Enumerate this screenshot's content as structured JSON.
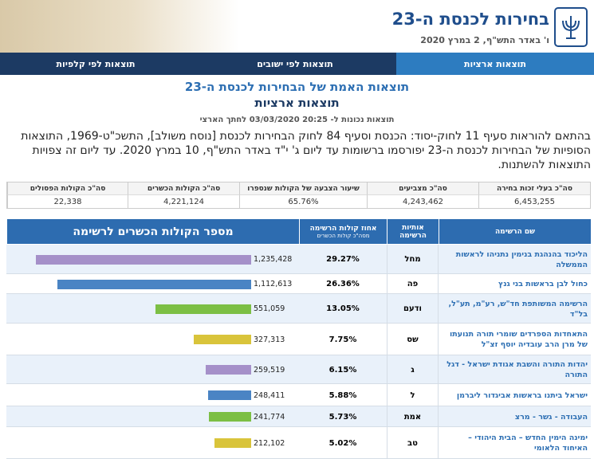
{
  "header": {
    "title": "בחירות לכנסת ה-23",
    "date": "ו' באדר התש\"ף, 2 במרץ 2020"
  },
  "nav": [
    "תוצאות ארציות",
    "תוצאות לפי ישובים",
    "תוצאות לפי קלפיות"
  ],
  "main": {
    "title": "תוצאות האמת של הבחירות לכנסת ה-23",
    "subtitle": "תוצאות ארציות",
    "timestamp": "תוצאות נכונות ל- 20:25 03/03/2020 לחתך הארצי",
    "paragraph": "בהתאם להוראות סעיף 11 לחוק-יסוד: הכנסת וסעיף 84 לחוק הבחירות לכנסת [נוסח משולב], התשכ\"ט-1969, התוצאות הסופיות של הבחירות לכנסת ה-23 יפורסמו ברשומות עד ליום ג' י\"ד באדר התש\"ף, 10 במרץ 2020. עד ליום זה צפויות התוצאות להשתנות."
  },
  "summary": {
    "headers": [
      "סה\"כ בעלי זכות בחירה",
      "סה\"כ מצביעים",
      "שיעור הצבעה של הקולות שנספרו",
      "סה\"כ הקולות הכשרים",
      "סה\"כ הקולות הפסולים"
    ],
    "values": [
      "6,453,255",
      "4,243,462",
      "65.76%",
      "4,221,124",
      "22,338"
    ]
  },
  "results": {
    "headers": {
      "name": "שם הרשימה",
      "letters": "אותיות הרשימה",
      "percent": "אחוז קולות הרשימה",
      "percent_sub": "מסה\"כ קולות הכשרים",
      "votes": "מספר הקולות הכשרים לרשימה"
    },
    "rows": [
      {
        "name": "הליכוד בהנהגת בנימין נתניהו לראשות הממשלה",
        "letters": "מחל",
        "percent": "29.27%",
        "votes": 1235428,
        "votes_label": "1,235,428",
        "color": "#a590c9"
      },
      {
        "name": "כחול לבן בראשות בני גנץ",
        "letters": "פה",
        "percent": "26.36%",
        "votes": 1112613,
        "votes_label": "1,112,613",
        "color": "#4a84c4"
      },
      {
        "name": "הרשימה המשותפת חד\"ש, רע\"מ, תע\"ל, בל\"ד",
        "letters": "ודעם",
        "percent": "13.05%",
        "votes": 551059,
        "votes_label": "551,059",
        "color": "#7cbf44"
      },
      {
        "name": "התאחדות הספרדים שומרי תורה תנועתו של מרן הרב עובדיה יוסף זצ\"ל",
        "letters": "שס",
        "percent": "7.75%",
        "votes": 327313,
        "votes_label": "327,313",
        "color": "#d9c43b"
      },
      {
        "name": "יהדות התורה והשבת אגודת ישראל - דגל התורה",
        "letters": "ג",
        "percent": "6.15%",
        "votes": 259519,
        "votes_label": "259,519",
        "color": "#a590c9"
      },
      {
        "name": "ישראל ביתנו בראשות אביגדור ליברמן",
        "letters": "ל",
        "percent": "5.88%",
        "votes": 248411,
        "votes_label": "248,411",
        "color": "#4a84c4"
      },
      {
        "name": "העבודה - גשר - מרצ",
        "letters": "אמת",
        "percent": "5.73%",
        "votes": 241774,
        "votes_label": "241,774",
        "color": "#7cbf44"
      },
      {
        "name": "ימינה הימין החדש – הבית היהודי – האיחוד הלאומי",
        "letters": "טב",
        "percent": "5.02%",
        "votes": 212102,
        "votes_label": "212,102",
        "color": "#d9c43b"
      }
    ]
  }
}
